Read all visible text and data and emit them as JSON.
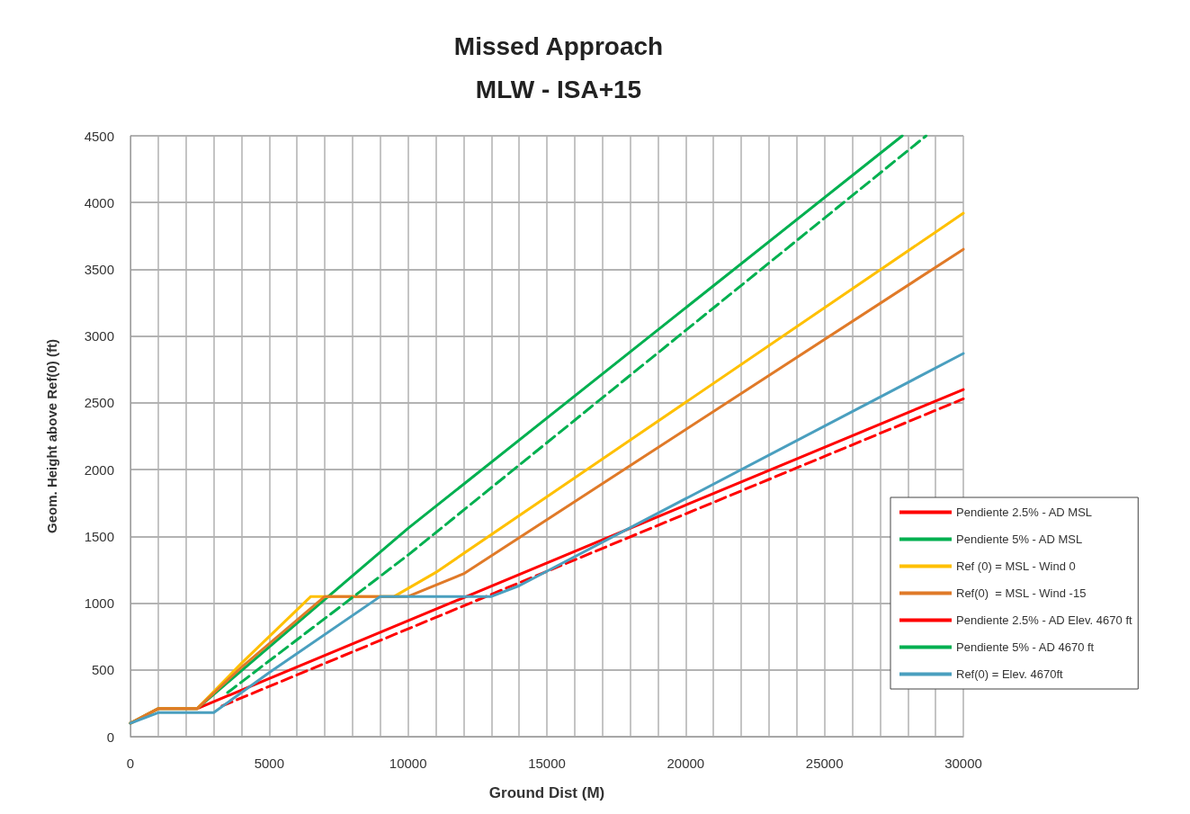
{
  "chart_data": {
    "type": "line",
    "title": "Missed Approach",
    "subtitle": "MLW - ISA+15",
    "xlabel": "Ground Dist (M)",
    "ylabel": "Geom. Height above Ref(0) (ft)",
    "xlim": [
      0,
      30000
    ],
    "ylim": [
      0,
      4500
    ],
    "xticks": [
      0,
      {
        "value": 1000,
        "label": null
      },
      {
        "value": 2000,
        "label": null
      },
      {
        "value": 3000,
        "label": null
      },
      {
        "value": 4000,
        "label": null
      },
      5000,
      {
        "value": 6000,
        "label": null
      },
      {
        "value": 7000,
        "label": null
      },
      {
        "value": 8000,
        "label": null
      },
      {
        "value": 9000,
        "label": null
      },
      10000,
      {
        "value": 11000,
        "label": null
      },
      {
        "value": 12000,
        "label": null
      },
      {
        "value": 13000,
        "label": null
      },
      {
        "value": 14000,
        "label": null
      },
      15000,
      {
        "value": 16000,
        "label": null
      },
      {
        "value": 17000,
        "label": null
      },
      {
        "value": 18000,
        "label": null
      },
      {
        "value": 19000,
        "label": null
      },
      20000,
      {
        "value": 21000,
        "label": null
      },
      {
        "value": 22000,
        "label": null
      },
      {
        "value": 23000,
        "label": null
      },
      {
        "value": 24000,
        "label": null
      },
      25000,
      {
        "value": 26000,
        "label": null
      },
      {
        "value": 27000,
        "label": null
      },
      {
        "value": 28000,
        "label": null
      },
      {
        "value": 29000,
        "label": null
      },
      30000
    ],
    "yticks": [
      0,
      500,
      1000,
      1500,
      2000,
      2500,
      3000,
      3500,
      4000,
      4500
    ],
    "grid": true,
    "legend": "right",
    "marker": "none",
    "series": [
      {
        "name": "Pendiente 2.5% - AD MSL",
        "color": "#ff0000",
        "x": [
          0,
          1000,
          2400,
          30000
        ],
        "values": [
          100,
          210,
          210,
          2600
        ]
      },
      {
        "name": "Pendiente 5% - AD MSL",
        "color": "#00b050",
        "x": [
          0,
          1000,
          2400,
          10000,
          27800
        ],
        "values": [
          100,
          210,
          210,
          1560,
          4500
        ]
      },
      {
        "name": "Ref (0) = MSL - Wind 0",
        "color": "#ffc000",
        "x": [
          0,
          1000,
          2400,
          4000,
          6500,
          9500,
          11000,
          30000
        ],
        "values": [
          100,
          210,
          210,
          550,
          1050,
          1050,
          1230,
          3920
        ]
      },
      {
        "name": "Ref(0)  = MSL - Wind -15",
        "color": "#e07a28",
        "x": [
          0,
          1000,
          2400,
          4000,
          7000,
          10000,
          12000,
          30000
        ],
        "values": [
          100,
          210,
          210,
          520,
          1050,
          1050,
          1220,
          3650
        ]
      },
      {
        "name": "Pendiente 2.5% - AD Elev. 4670 ft",
        "color": "#ff0000",
        "line_style": "dashed",
        "x": [
          3300,
          30000
        ],
        "values": [
          230,
          2530
        ]
      },
      {
        "name": "Pendiente 5% - AD 4670 ft",
        "color": "#00b050",
        "line_style": "dashed",
        "x": [
          3500,
          10000,
          28660
        ],
        "values": [
          330,
          1360,
          4500
        ]
      },
      {
        "name": "Ref(0) = Elev. 4670ft",
        "color": "#4a9fbf",
        "x": [
          0,
          1000,
          3000,
          5000,
          9000,
          13000,
          14000,
          30000
        ],
        "values": [
          100,
          180,
          180,
          480,
          1050,
          1050,
          1130,
          2870
        ]
      }
    ]
  }
}
